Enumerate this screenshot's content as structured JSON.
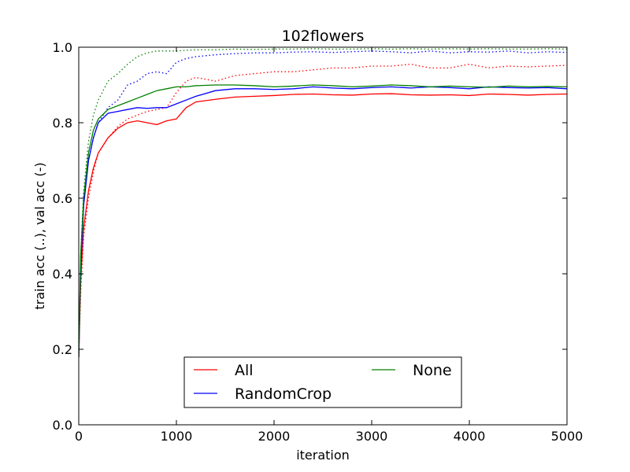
{
  "chart_data": {
    "type": "line",
    "title": "102flowers",
    "xlabel": "iteration",
    "ylabel": "train acc (..), val acc (-)",
    "xlim": [
      0,
      5000
    ],
    "ylim": [
      0,
      1.0
    ],
    "xticks": [
      "0",
      "1000",
      "2000",
      "3000",
      "4000",
      "5000"
    ],
    "yticks": [
      "0.0",
      "0.2",
      "0.4",
      "0.6",
      "0.8",
      "1.0"
    ],
    "grid": false,
    "legend": {
      "placement": "lower-center",
      "columns": 2
    },
    "series": [
      {
        "name": "All",
        "color": "#ff0000",
        "metric": "val",
        "style": "solid",
        "x": [
          0,
          20,
          50,
          100,
          150,
          200,
          300,
          400,
          500,
          600,
          700,
          800,
          900,
          1000,
          1100,
          1200,
          1400,
          1600,
          1800,
          2000,
          2200,
          2400,
          2600,
          2800,
          3000,
          3200,
          3400,
          3600,
          3800,
          4000,
          4200,
          4400,
          4600,
          4800,
          5000
        ],
        "y": [
          0.18,
          0.38,
          0.52,
          0.62,
          0.68,
          0.72,
          0.76,
          0.785,
          0.8,
          0.805,
          0.8,
          0.795,
          0.805,
          0.81,
          0.84,
          0.855,
          0.862,
          0.868,
          0.87,
          0.872,
          0.875,
          0.876,
          0.874,
          0.873,
          0.876,
          0.877,
          0.874,
          0.873,
          0.874,
          0.872,
          0.876,
          0.875,
          0.873,
          0.875,
          0.876
        ]
      },
      {
        "name": "",
        "color": "#ff0000",
        "metric": "train",
        "style": "dotted",
        "x": [
          0,
          20,
          50,
          100,
          150,
          200,
          300,
          400,
          500,
          600,
          700,
          800,
          900,
          1000,
          1100,
          1200,
          1400,
          1600,
          1800,
          2000,
          2200,
          2400,
          2600,
          2800,
          3000,
          3200,
          3400,
          3600,
          3800,
          4000,
          4200,
          4400,
          4600,
          4800,
          5000
        ],
        "y": [
          0.18,
          0.35,
          0.5,
          0.6,
          0.67,
          0.72,
          0.76,
          0.79,
          0.81,
          0.82,
          0.83,
          0.835,
          0.84,
          0.88,
          0.91,
          0.92,
          0.91,
          0.925,
          0.93,
          0.935,
          0.935,
          0.94,
          0.945,
          0.945,
          0.95,
          0.95,
          0.955,
          0.945,
          0.945,
          0.955,
          0.945,
          0.95,
          0.948,
          0.95,
          0.952
        ]
      },
      {
        "name": "RandomCrop",
        "color": "#0000ff",
        "metric": "val",
        "style": "solid",
        "x": [
          0,
          20,
          50,
          100,
          150,
          200,
          300,
          400,
          500,
          600,
          700,
          800,
          900,
          1000,
          1100,
          1200,
          1400,
          1600,
          1800,
          2000,
          2200,
          2400,
          2600,
          2800,
          3000,
          3200,
          3400,
          3600,
          3800,
          4000,
          4200,
          4400,
          4600,
          4800,
          5000
        ],
        "y": [
          0.18,
          0.42,
          0.58,
          0.7,
          0.76,
          0.8,
          0.825,
          0.83,
          0.835,
          0.84,
          0.838,
          0.84,
          0.84,
          0.85,
          0.86,
          0.87,
          0.885,
          0.89,
          0.89,
          0.888,
          0.89,
          0.895,
          0.892,
          0.89,
          0.893,
          0.895,
          0.892,
          0.895,
          0.893,
          0.89,
          0.895,
          0.893,
          0.892,
          0.893,
          0.89
        ]
      },
      {
        "name": "",
        "color": "#0000ff",
        "metric": "train",
        "style": "dotted",
        "x": [
          0,
          20,
          50,
          100,
          150,
          200,
          300,
          400,
          500,
          600,
          700,
          800,
          900,
          1000,
          1100,
          1200,
          1400,
          1600,
          1800,
          2000,
          2200,
          2400,
          2600,
          2800,
          3000,
          3200,
          3400,
          3600,
          3800,
          4000,
          4200,
          4400,
          4600,
          4800,
          5000
        ],
        "y": [
          0.18,
          0.4,
          0.58,
          0.7,
          0.76,
          0.8,
          0.84,
          0.86,
          0.9,
          0.91,
          0.93,
          0.935,
          0.93,
          0.96,
          0.97,
          0.975,
          0.98,
          0.983,
          0.985,
          0.985,
          0.987,
          0.988,
          0.986,
          0.988,
          0.99,
          0.988,
          0.985,
          0.99,
          0.985,
          0.988,
          0.987,
          0.99,
          0.985,
          0.988,
          0.986
        ]
      },
      {
        "name": "None",
        "color": "#008000",
        "metric": "val",
        "style": "solid",
        "x": [
          0,
          20,
          50,
          100,
          150,
          200,
          300,
          400,
          500,
          600,
          700,
          800,
          900,
          1000,
          1100,
          1200,
          1400,
          1600,
          1800,
          2000,
          2200,
          2400,
          2600,
          2800,
          3000,
          3200,
          3400,
          3600,
          3800,
          4000,
          4200,
          4400,
          4600,
          4800,
          5000
        ],
        "y": [
          0.18,
          0.45,
          0.6,
          0.72,
          0.78,
          0.81,
          0.835,
          0.845,
          0.855,
          0.865,
          0.875,
          0.885,
          0.89,
          0.895,
          0.895,
          0.898,
          0.9,
          0.9,
          0.898,
          0.895,
          0.897,
          0.9,
          0.898,
          0.895,
          0.897,
          0.9,
          0.898,
          0.895,
          0.897,
          0.895,
          0.894,
          0.897,
          0.895,
          0.896,
          0.895
        ]
      },
      {
        "name": "",
        "color": "#008000",
        "metric": "train",
        "style": "dotted",
        "x": [
          0,
          20,
          50,
          100,
          150,
          200,
          300,
          400,
          500,
          600,
          700,
          800,
          900,
          1000,
          1100,
          1200,
          1400,
          1600,
          1800,
          2000,
          2200,
          2400,
          2600,
          2800,
          3000,
          3200,
          3400,
          3600,
          3800,
          4000,
          4200,
          4400,
          4600,
          4800,
          5000
        ],
        "y": [
          0.18,
          0.45,
          0.62,
          0.75,
          0.82,
          0.86,
          0.91,
          0.93,
          0.955,
          0.975,
          0.985,
          0.99,
          0.99,
          0.99,
          0.992,
          0.993,
          0.993,
          0.995,
          0.994,
          0.995,
          0.995,
          0.996,
          0.995,
          0.995,
          0.996,
          0.995,
          0.996,
          0.995,
          0.996,
          0.995,
          0.996,
          0.995,
          0.995,
          0.996,
          0.995
        ]
      }
    ]
  }
}
